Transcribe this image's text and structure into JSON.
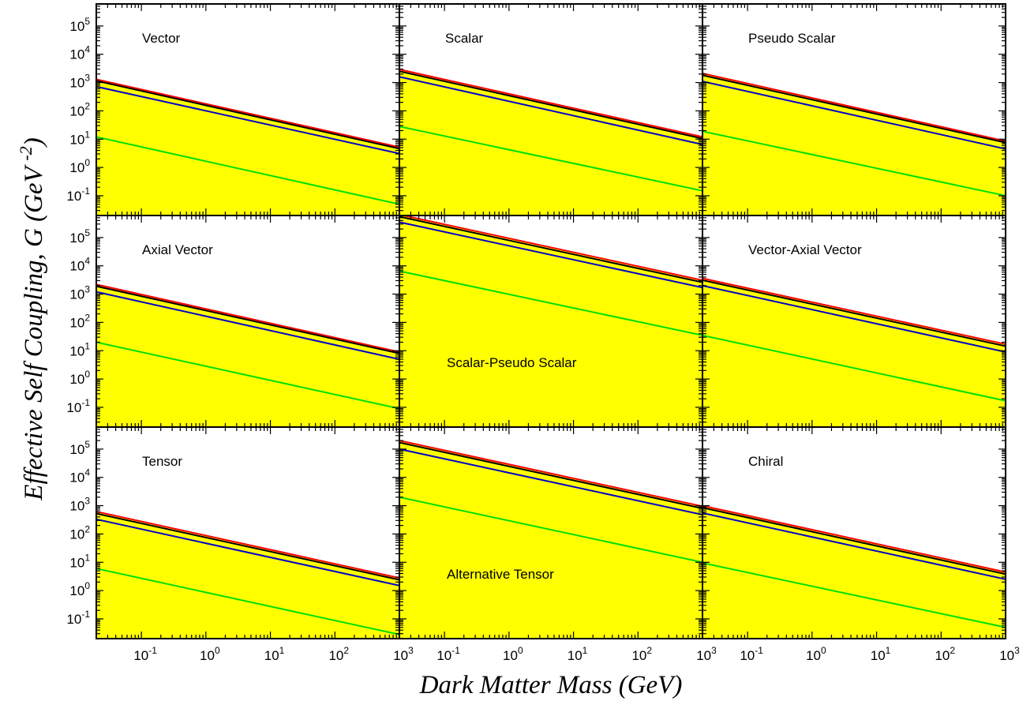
{
  "chart_data": {
    "type": "line",
    "xlabel": "Dark Matter Mass (GeV)",
    "ylabel": "Effective Self Coupling, G (GeV -2 )",
    "x_scale": "log",
    "y_scale": "log",
    "xlim": [
      0.02,
      1000
    ],
    "ylim": [
      0.02,
      600000
    ],
    "shading": "#ffff00",
    "x_tick_labels": [
      {
        "v": 0.1,
        "base": "10",
        "exp": "-1"
      },
      {
        "v": 1,
        "base": "10",
        "exp": "0"
      },
      {
        "v": 10,
        "base": "10",
        "exp": "1"
      },
      {
        "v": 100,
        "base": "10",
        "exp": "2"
      },
      {
        "v": 1000,
        "base": "10",
        "exp": "3"
      }
    ],
    "y_tick_labels": [
      {
        "v": 0.1,
        "base": "10",
        "exp": "-1"
      },
      {
        "v": 1,
        "base": "10",
        "exp": "0"
      },
      {
        "v": 10,
        "base": "10",
        "exp": "1"
      },
      {
        "v": 100,
        "base": "10",
        "exp": "2"
      },
      {
        "v": 1000,
        "base": "10",
        "exp": "3"
      },
      {
        "v": 10000,
        "base": "10",
        "exp": "4"
      },
      {
        "v": 100000,
        "base": "10",
        "exp": "5"
      }
    ],
    "series_colors": [
      "#ff0000",
      "#000000",
      "#0000cc",
      "#00e000"
    ],
    "panels": [
      {
        "label": "Vector",
        "label_pos": "top-left",
        "series": [
          {
            "x": [
              0.02,
              1000
            ],
            "y": [
              1300,
              5.2
            ]
          },
          {
            "x": [
              0.02,
              1000
            ],
            "y": [
              1150,
              4.6
            ]
          },
          {
            "x": [
              0.02,
              1000
            ],
            "y": [
              720,
              3.1
            ]
          },
          {
            "x": [
              0.02,
              1000
            ],
            "y": [
              12,
              0.05
            ]
          }
        ]
      },
      {
        "label": "Scalar",
        "label_pos": "top-left",
        "series": [
          {
            "x": [
              0.02,
              1000
            ],
            "y": [
              2900,
              12
            ]
          },
          {
            "x": [
              0.02,
              1000
            ],
            "y": [
              2500,
              10.5
            ]
          },
          {
            "x": [
              0.02,
              1000
            ],
            "y": [
              1600,
              6.5
            ]
          },
          {
            "x": [
              0.02,
              1000
            ],
            "y": [
              28,
              0.15
            ]
          }
        ]
      },
      {
        "label": "Pseudo Scalar",
        "label_pos": "top-left",
        "series": [
          {
            "x": [
              0.02,
              1000
            ],
            "y": [
              2100,
              8.5
            ]
          },
          {
            "x": [
              0.02,
              1000
            ],
            "y": [
              1800,
              7.5
            ]
          },
          {
            "x": [
              0.02,
              1000
            ],
            "y": [
              1100,
              4.5
            ]
          },
          {
            "x": [
              0.02,
              1000
            ],
            "y": [
              19,
              0.1
            ]
          }
        ]
      },
      {
        "label": "Axial Vector",
        "label_pos": "top-left",
        "series": [
          {
            "x": [
              0.02,
              1000
            ],
            "y": [
              2200,
              9
            ]
          },
          {
            "x": [
              0.02,
              1000
            ],
            "y": [
              1900,
              8
            ]
          },
          {
            "x": [
              0.02,
              1000
            ],
            "y": [
              1200,
              5
            ]
          },
          {
            "x": [
              0.02,
              1000
            ],
            "y": [
              20,
              0.09
            ]
          }
        ]
      },
      {
        "label": "Scalar-Pseudo Scalar",
        "label_pos": "bottom-center",
        "series": [
          {
            "x": [
              0.02,
              1000
            ],
            "y": [
              650000,
              3100
            ]
          },
          {
            "x": [
              0.02,
              1000
            ],
            "y": [
              550000,
              2600
            ]
          },
          {
            "x": [
              0.02,
              1000
            ],
            "y": [
              350000,
              1700
            ]
          },
          {
            "x": [
              0.02,
              1000
            ],
            "y": [
              6500,
              35
            ]
          }
        ]
      },
      {
        "label": "Vector-Axial Vector",
        "label_pos": "top-left",
        "series": [
          {
            "x": [
              0.02,
              1000
            ],
            "y": [
              3600,
              17
            ]
          },
          {
            "x": [
              0.02,
              1000
            ],
            "y": [
              3100,
              14.5
            ]
          },
          {
            "x": [
              0.02,
              1000
            ],
            "y": [
              2000,
              9
            ]
          },
          {
            "x": [
              0.02,
              1000
            ],
            "y": [
              35,
              0.17
            ]
          }
        ]
      },
      {
        "label": "Tensor",
        "label_pos": "top-left",
        "series": [
          {
            "x": [
              0.02,
              1000
            ],
            "y": [
              620,
              2.8
            ]
          },
          {
            "x": [
              0.02,
              1000
            ],
            "y": [
              530,
              2.4
            ]
          },
          {
            "x": [
              0.02,
              1000
            ],
            "y": [
              330,
              1.5
            ]
          },
          {
            "x": [
              0.02,
              1000
            ],
            "y": [
              6,
              0.028
            ]
          }
        ]
      },
      {
        "label": "Alternative Tensor",
        "label_pos": "bottom-center",
        "series": [
          {
            "x": [
              0.02,
              1000
            ],
            "y": [
              200000,
              950
            ]
          },
          {
            "x": [
              0.02,
              1000
            ],
            "y": [
              170000,
              800
            ]
          },
          {
            "x": [
              0.02,
              1000
            ],
            "y": [
              100000,
              480
            ]
          },
          {
            "x": [
              0.02,
              1000
            ],
            "y": [
              2000,
              10
            ]
          }
        ]
      },
      {
        "label": "Chiral",
        "label_pos": "top-left",
        "series": [
          {
            "x": [
              0.02,
              1000
            ],
            "y": [
              1000,
              4.5
            ]
          },
          {
            "x": [
              0.02,
              1000
            ],
            "y": [
              850,
              3.8
            ]
          },
          {
            "x": [
              0.02,
              1000
            ],
            "y": [
              550,
              2.5
            ]
          },
          {
            "x": [
              0.02,
              1000
            ],
            "y": [
              9.5,
              0.05
            ]
          }
        ]
      }
    ]
  }
}
